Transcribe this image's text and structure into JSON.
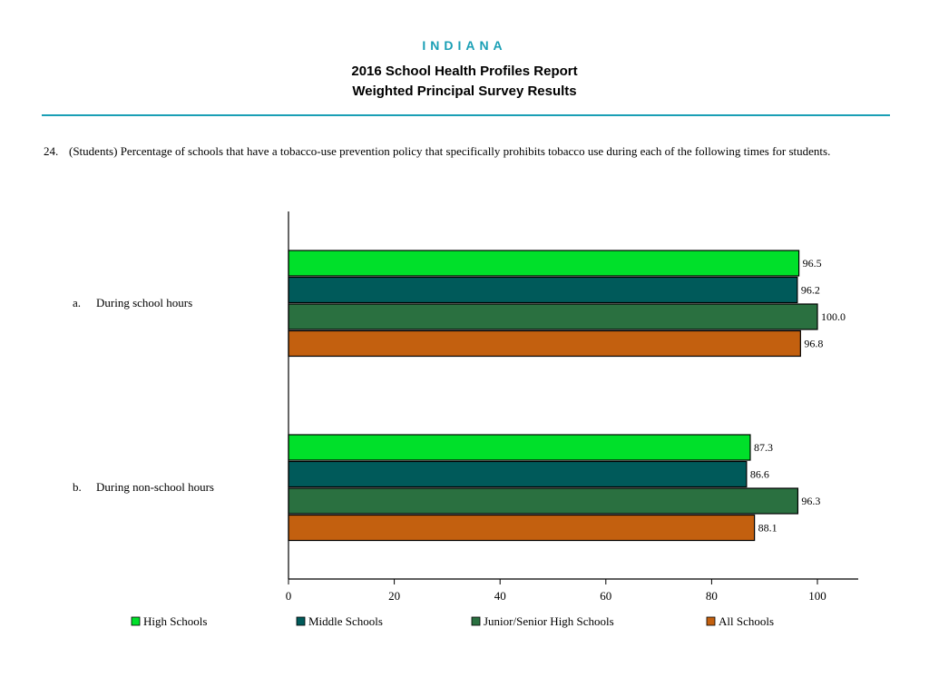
{
  "header": {
    "state": "INDIANA",
    "title_line1": "2016 School Health Profiles Report",
    "title_line2": "Weighted Principal Survey Results"
  },
  "question": {
    "number": "24.",
    "text": "(Students) Percentage of schools that have a tobacco-use prevention policy that specifically prohibits tobacco use during each of the following times for students."
  },
  "colors": {
    "accent": "#1a9fb5",
    "series": [
      "#00e02a",
      "#005a5a",
      "#2a7040",
      "#c3600f"
    ]
  },
  "chart_data": {
    "type": "bar",
    "orientation": "horizontal",
    "categories": [
      {
        "letter": "a.",
        "label": "During school hours"
      },
      {
        "letter": "b.",
        "label": "During non-school hours"
      }
    ],
    "series": [
      {
        "name": "High Schools",
        "values": [
          96.5,
          87.3
        ],
        "labels": [
          "96.5",
          "87.3"
        ]
      },
      {
        "name": "Middle Schools",
        "values": [
          96.2,
          86.6
        ],
        "labels": [
          "96.2",
          "86.6"
        ]
      },
      {
        "name": "Junior/Senior High Schools",
        "values": [
          100.0,
          96.3
        ],
        "labels": [
          "100.0",
          "96.3"
        ]
      },
      {
        "name": "All Schools",
        "values": [
          96.8,
          88.1
        ],
        "labels": [
          "96.8",
          "88.1"
        ]
      }
    ],
    "xlim": [
      0,
      100
    ],
    "xticks": [
      "0",
      "20",
      "40",
      "60",
      "80",
      "100"
    ],
    "legend_position": "bottom"
  }
}
